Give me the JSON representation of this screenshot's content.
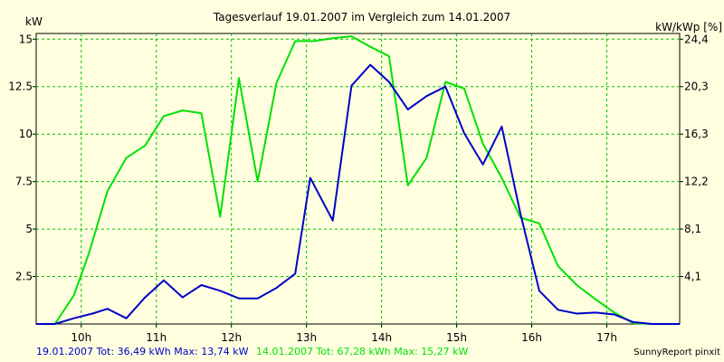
{
  "chart_data": {
    "type": "line",
    "title": "Tagesverlauf 19.01.2007 im Vergleich zum 14.01.2007",
    "ylabel_left": "kW",
    "ylabel_right": "kW/kWp [%]",
    "ylim": [
      0,
      15.3
    ],
    "xlim": [
      9.4,
      17.97
    ],
    "y_ticks_left": [
      {
        "value": 2.5,
        "label": "2.5"
      },
      {
        "value": 5,
        "label": "5"
      },
      {
        "value": 7.5,
        "label": "7.5"
      },
      {
        "value": 10,
        "label": "10"
      },
      {
        "value": 12.5,
        "label": "12.5"
      },
      {
        "value": 15,
        "label": "15"
      }
    ],
    "y_ticks_right": [
      {
        "value": 2.5,
        "label": "4,1"
      },
      {
        "value": 5,
        "label": "8,1"
      },
      {
        "value": 7.5,
        "label": "12,2"
      },
      {
        "value": 10,
        "label": "16,3"
      },
      {
        "value": 12.5,
        "label": "20,3"
      },
      {
        "value": 15,
        "label": "24,4"
      }
    ],
    "x_ticks": [
      {
        "value": 10,
        "label": "10h"
      },
      {
        "value": 11,
        "label": "11h"
      },
      {
        "value": 12,
        "label": "12h"
      },
      {
        "value": 13,
        "label": "13h"
      },
      {
        "value": 14,
        "label": "14h"
      },
      {
        "value": 15,
        "label": "15h"
      },
      {
        "value": 16,
        "label": "16h"
      },
      {
        "value": 17,
        "label": "17h"
      }
    ],
    "grid": true,
    "series": [
      {
        "name": "19.01.2007",
        "color": "#0000c8",
        "legend_text": "19.01.2007 Tot: 36,49 kWh Max: 13,74 kW",
        "points": [
          [
            9.4,
            0.0
          ],
          [
            9.65,
            0.0
          ],
          [
            9.9,
            0.3
          ],
          [
            10.15,
            0.55
          ],
          [
            10.35,
            0.8
          ],
          [
            10.6,
            0.3
          ],
          [
            10.85,
            1.4
          ],
          [
            11.1,
            2.3
          ],
          [
            11.35,
            1.4
          ],
          [
            11.6,
            2.05
          ],
          [
            11.85,
            1.75
          ],
          [
            12.1,
            1.35
          ],
          [
            12.35,
            1.35
          ],
          [
            12.6,
            1.9
          ],
          [
            12.85,
            2.65
          ],
          [
            13.05,
            7.7
          ],
          [
            13.35,
            5.45
          ],
          [
            13.6,
            12.55
          ],
          [
            13.85,
            13.65
          ],
          [
            14.1,
            12.75
          ],
          [
            14.35,
            11.3
          ],
          [
            14.6,
            12.0
          ],
          [
            14.85,
            12.5
          ],
          [
            15.1,
            10.05
          ],
          [
            15.35,
            8.4
          ],
          [
            15.6,
            10.4
          ],
          [
            15.85,
            5.8
          ],
          [
            16.1,
            1.75
          ],
          [
            16.35,
            0.75
          ],
          [
            16.6,
            0.55
          ],
          [
            16.85,
            0.6
          ],
          [
            17.1,
            0.5
          ],
          [
            17.35,
            0.1
          ],
          [
            17.6,
            0.0
          ],
          [
            17.97,
            0.0
          ]
        ]
      },
      {
        "name": "14.01.2007",
        "color": "#00e000",
        "legend_text": "14.01.2007 Tot: 67,28 kWh Max: 15,27 kW",
        "points": [
          [
            9.4,
            0.0
          ],
          [
            9.65,
            0.0
          ],
          [
            9.9,
            1.5
          ],
          [
            10.1,
            3.7
          ],
          [
            10.35,
            7.0
          ],
          [
            10.6,
            8.75
          ],
          [
            10.85,
            9.4
          ],
          [
            11.1,
            10.95
          ],
          [
            11.35,
            11.25
          ],
          [
            11.6,
            11.1
          ],
          [
            11.85,
            5.65
          ],
          [
            12.1,
            12.95
          ],
          [
            12.35,
            7.5
          ],
          [
            12.6,
            12.7
          ],
          [
            12.85,
            14.9
          ],
          [
            13.1,
            14.9
          ],
          [
            13.35,
            15.05
          ],
          [
            13.6,
            15.15
          ],
          [
            13.85,
            14.6
          ],
          [
            14.1,
            14.1
          ],
          [
            14.35,
            7.3
          ],
          [
            14.6,
            8.75
          ],
          [
            14.85,
            12.75
          ],
          [
            15.1,
            12.4
          ],
          [
            15.35,
            9.5
          ],
          [
            15.6,
            7.7
          ],
          [
            15.85,
            5.6
          ],
          [
            16.1,
            5.3
          ],
          [
            16.35,
            3.05
          ],
          [
            16.6,
            2.05
          ],
          [
            16.85,
            1.3
          ],
          [
            17.1,
            0.6
          ],
          [
            17.35,
            0.05
          ],
          [
            17.6,
            0.0
          ],
          [
            17.97,
            0.0
          ]
        ]
      }
    ]
  },
  "credit": "SunnyReport pinxit"
}
